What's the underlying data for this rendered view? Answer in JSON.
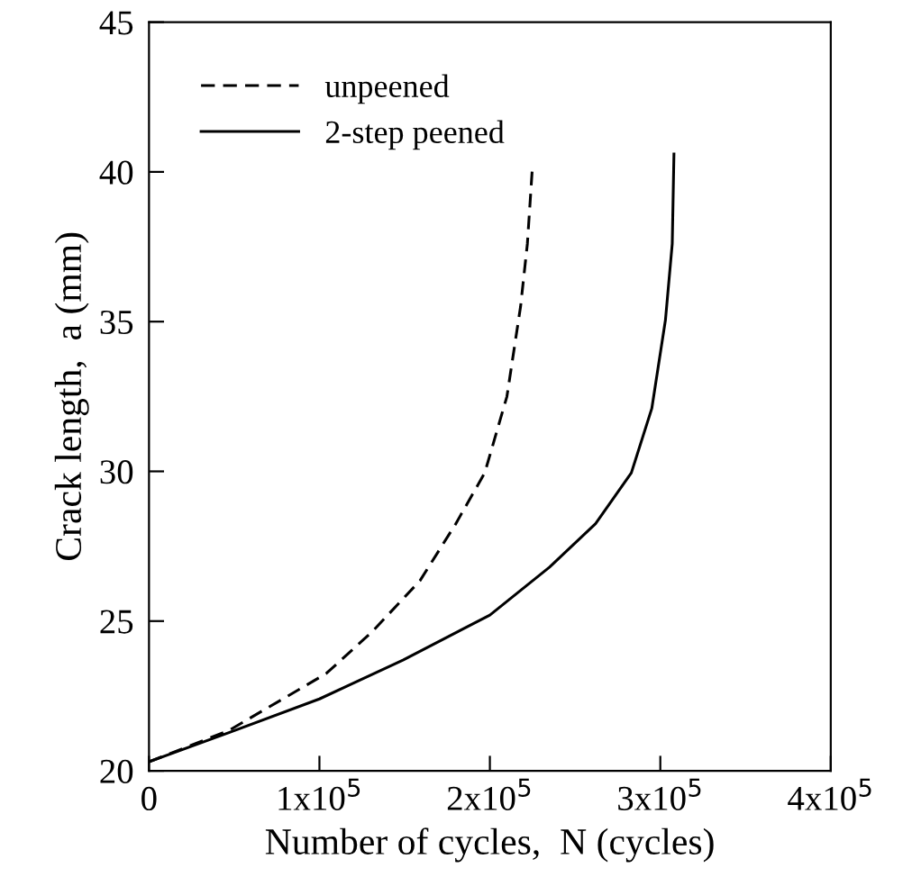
{
  "chart_data": {
    "type": "line",
    "xlabel": "Number of cycles,  N (cycles)",
    "ylabel": "Crack length,  a (mm)",
    "xlim": [
      0,
      400000
    ],
    "ylim": [
      20,
      45
    ],
    "xticks": [
      0,
      {
        "value": 100000,
        "label": "1x10$^{5}$"
      },
      {
        "value": 200000,
        "label": "2x10$^{5}$"
      },
      {
        "value": 300000,
        "label": "3x10$^{5}$"
      },
      {
        "value": 400000,
        "label": "4x10$^{5}$"
      }
    ],
    "yticks": [
      20,
      25,
      30,
      35,
      40,
      45
    ],
    "grid": false,
    "legend": "top left",
    "series": [
      {
        "name": "unpeened",
        "color": "#000000",
        "line_style": "dashed",
        "x": [
          0,
          47000,
          104000,
          131000,
          159000,
          180000,
          197000,
          210000,
          218000,
          222000,
          225000
        ],
        "values": [
          20.3,
          21.35,
          23.25,
          24.65,
          26.35,
          28.25,
          29.95,
          32.5,
          35.5,
          37.6,
          40.2
        ]
      },
      {
        "name": "2-step peened",
        "color": "#000000",
        "line_style": "solid",
        "x": [
          0,
          48000,
          100000,
          149000,
          200000,
          235000,
          262000,
          283000,
          295000,
          303000,
          307000,
          308000
        ],
        "values": [
          20.3,
          21.3,
          22.4,
          23.7,
          25.2,
          26.8,
          28.25,
          29.95,
          32.1,
          35.05,
          37.6,
          40.6
        ]
      }
    ]
  }
}
